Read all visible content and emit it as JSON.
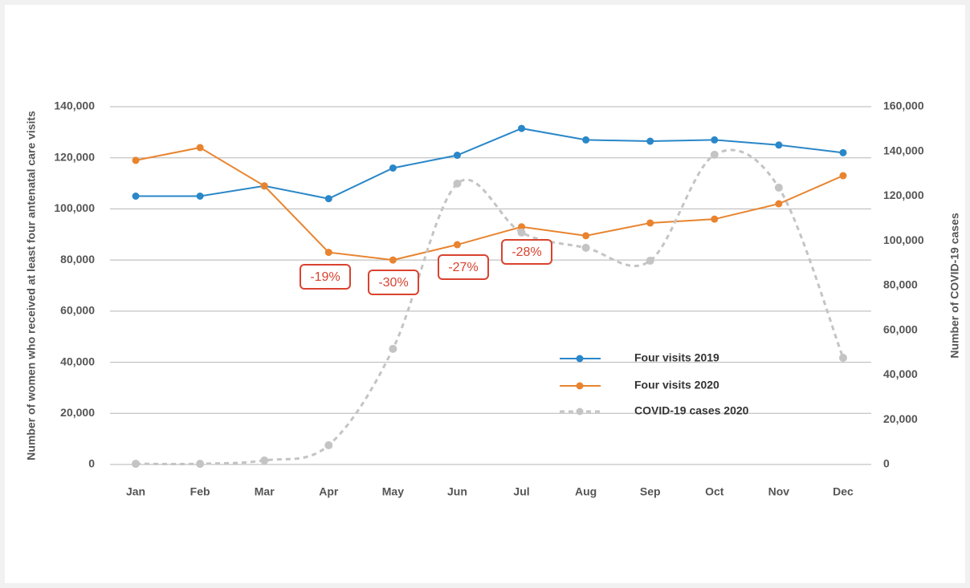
{
  "chart_data": {
    "type": "line",
    "categories": [
      "Jan",
      "Feb",
      "Mar",
      "Apr",
      "May",
      "Jun",
      "Jul",
      "Aug",
      "Sep",
      "Oct",
      "Nov",
      "Dec"
    ],
    "series": [
      {
        "name": "Four visits 2019",
        "color": "#2a87c8",
        "values": [
          105000,
          105000,
          109000,
          104000,
          116000,
          121000,
          131500,
          127000,
          126500,
          127000,
          125000,
          122000
        ]
      },
      {
        "name": "Four visits 2020",
        "color": "#e8842f",
        "values": [
          119000,
          124000,
          109000,
          83000,
          80000,
          86000,
          93000,
          89500,
          94500,
          96000,
          102000,
          113000
        ]
      },
      {
        "name": "COVID-19 cases 2020",
        "color": "#c4c4c4",
        "axis": "y2",
        "dashed": true,
        "smooth": true,
        "values": [
          300,
          300,
          1800,
          8600,
          51700,
          125600,
          103700,
          96900,
          91100,
          138500,
          123800,
          47700
        ]
      }
    ],
    "ylabel": "Number of women who received at least four antenatal care visits",
    "y2label": "Number of COVID-19 cases",
    "ylim": [
      0,
      140000
    ],
    "yticks": [
      0,
      {
        "value": 20000,
        "label": "20,000"
      },
      {
        "value": 40000,
        "label": "40,000"
      },
      {
        "value": 60000,
        "label": "60,000"
      },
      {
        "value": 80000,
        "label": "80,000"
      },
      {
        "value": 100000,
        "label": "100,000"
      },
      {
        "value": 120000,
        "label": "120,000"
      },
      {
        "value": 140000,
        "label": "140,000"
      }
    ],
    "y2lim": [
      0,
      160000
    ],
    "y2ticks": [
      0,
      {
        "value": 20000,
        "label": "20,000"
      },
      {
        "value": 40000,
        "label": "40,000"
      },
      {
        "value": 60000,
        "label": "60,000"
      },
      {
        "value": 80000,
        "label": "80,000"
      },
      {
        "value": 100000,
        "label": "100,000"
      },
      {
        "value": 120000,
        "label": "120,000"
      },
      {
        "value": 140000,
        "label": "140,000"
      },
      {
        "value": 160000,
        "label": "160,000"
      }
    ],
    "grid": true,
    "legend": "lower right",
    "annotations": [
      {
        "text": "-19%"
      },
      {
        "text": "-30%"
      },
      {
        "text": "-27%"
      },
      {
        "text": "-28%"
      }
    ],
    "annotation_color": "#d9432f"
  }
}
